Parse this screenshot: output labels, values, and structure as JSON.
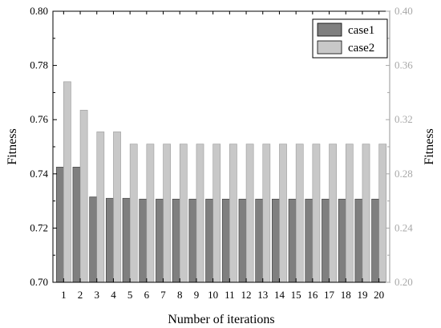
{
  "chart_data": {
    "type": "bar",
    "xlabel": "Number of iterations",
    "ylabel_left": "Fitness",
    "ylabel_right": "Fitness",
    "categories": [
      "1",
      "2",
      "3",
      "4",
      "5",
      "6",
      "7",
      "8",
      "9",
      "10",
      "11",
      "12",
      "13",
      "14",
      "15",
      "16",
      "17",
      "18",
      "19",
      "20"
    ],
    "ylim_left": [
      0.7,
      0.8
    ],
    "yticks_left": [
      "0.70",
      "0.72",
      "0.74",
      "0.76",
      "0.78",
      "0.80"
    ],
    "ylim_right": [
      0.2,
      0.4
    ],
    "yticks_right": [
      "0.20",
      "0.24",
      "0.28",
      "0.32",
      "0.36",
      "0.40"
    ],
    "legend_position": "top-right",
    "grid": false,
    "series": [
      {
        "name": "case1",
        "axis": "left",
        "color": "#7f7f7f",
        "values": [
          0.7425,
          0.7425,
          0.7315,
          0.731,
          0.731,
          0.7307,
          0.7307,
          0.7307,
          0.7307,
          0.7307,
          0.7307,
          0.7307,
          0.7307,
          0.7307,
          0.7307,
          0.7307,
          0.7307,
          0.7307,
          0.7307,
          0.7307
        ]
      },
      {
        "name": "case2",
        "axis": "right",
        "color": "#c8c8c8",
        "values": [
          0.348,
          0.327,
          0.311,
          0.311,
          0.302,
          0.302,
          0.302,
          0.302,
          0.302,
          0.302,
          0.302,
          0.302,
          0.302,
          0.302,
          0.302,
          0.302,
          0.302,
          0.302,
          0.302,
          0.302
        ]
      }
    ]
  }
}
